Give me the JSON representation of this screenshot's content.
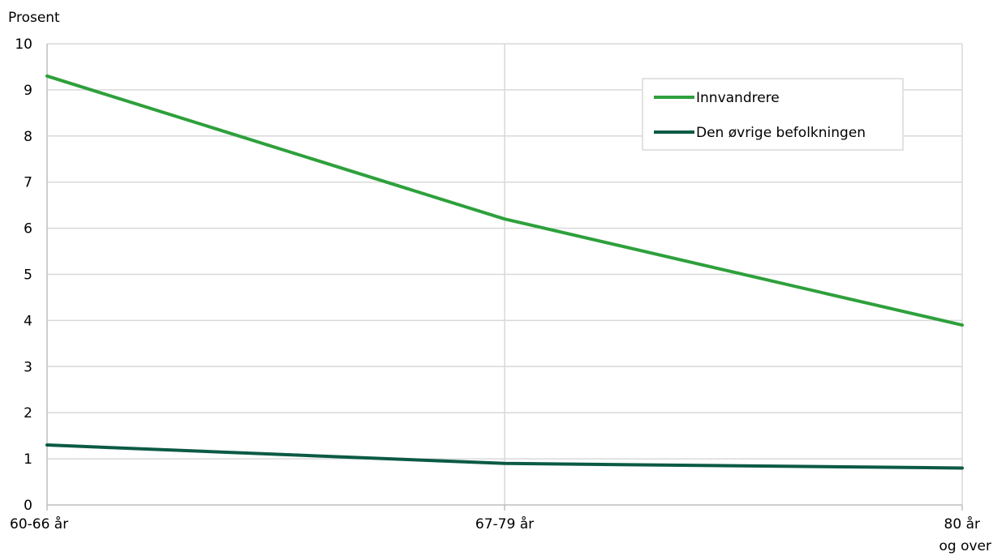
{
  "chart_data": {
    "type": "line",
    "ylabel": "Prosent",
    "xlabel": "",
    "ylim": [
      0,
      10
    ],
    "yticks": [
      0,
      1,
      2,
      3,
      4,
      5,
      6,
      7,
      8,
      9,
      10
    ],
    "categories": [
      [
        "60-66 år"
      ],
      [
        "67-79 år"
      ],
      [
        "80 år",
        "og over"
      ]
    ],
    "grid": "horizontal-and-vertical",
    "legend_position": "top-right",
    "series": [
      {
        "name": "Innvandrere",
        "values": [
          9.3,
          6.2,
          3.9
        ],
        "color": "#2ea03c"
      },
      {
        "name": "Den øvrige befolkningen",
        "values": [
          1.3,
          0.9,
          0.8
        ],
        "color": "#0b5a45"
      }
    ]
  }
}
